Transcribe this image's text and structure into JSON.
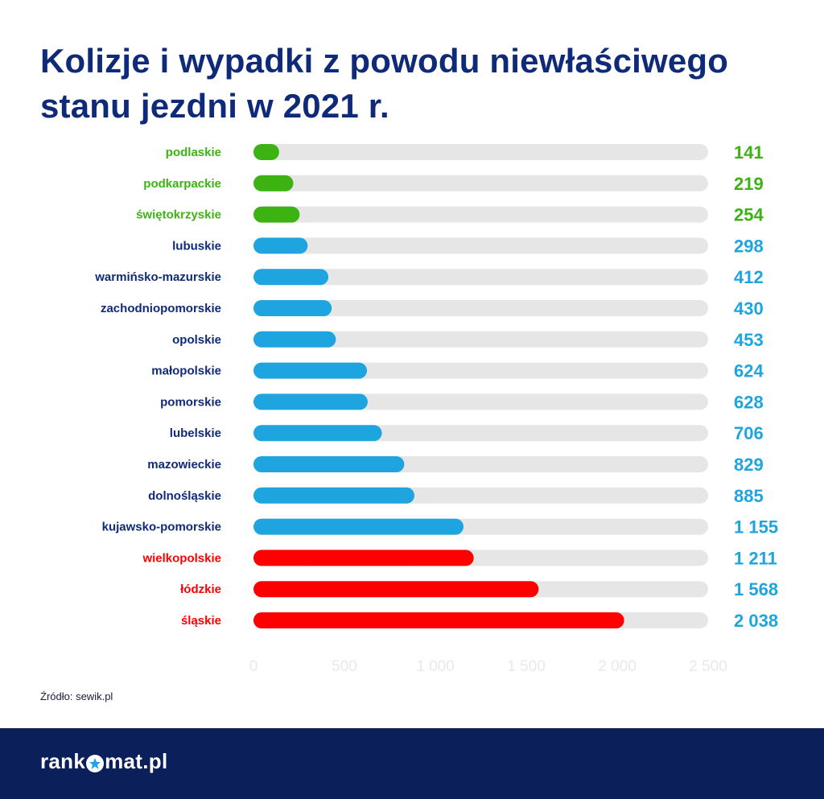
{
  "title": "Kolizje i wypadki z powodu niewłaściwego stanu jezdni w 2021 r.",
  "source": "Źródło: sewik.pl",
  "logo": {
    "part1": "rank",
    "part2": "mat.pl"
  },
  "colors": {
    "title": "#0f2a78",
    "green": "#3cb312",
    "blue": "#1ea4de",
    "red": "#ff0000",
    "navy_label": "#0f2a78",
    "track": "#e6e6e6",
    "footer": "#0b1f5b"
  },
  "chart_data": {
    "type": "bar",
    "orientation": "horizontal",
    "categories": [
      "podlaskie",
      "podkarpackie",
      "świętokrzyskie",
      "lubuskie",
      "warmińsko-mazurskie",
      "zachodniopomorskie",
      "opolskie",
      "małopolskie",
      "pomorskie",
      "lubelskie",
      "mazowieckie",
      "dolnośląskie",
      "kujawsko-pomorskie",
      "wielkopolskie",
      "łódzkie",
      "śląskie"
    ],
    "values": [
      141,
      219,
      254,
      298,
      412,
      430,
      453,
      624,
      628,
      706,
      829,
      885,
      1155,
      1211,
      1568,
      2038
    ],
    "value_labels": [
      "141",
      "219",
      "254",
      "298",
      "412",
      "430",
      "453",
      "624",
      "628",
      "706",
      "829",
      "885",
      "1 155",
      "1 211",
      "1 568",
      "2 038"
    ],
    "groups": [
      "green",
      "green",
      "green",
      "blue",
      "blue",
      "blue",
      "blue",
      "blue",
      "blue",
      "blue",
      "blue",
      "blue",
      "blue",
      "red",
      "red",
      "red"
    ],
    "label_colors": [
      "green",
      "green",
      "green",
      "navy_label",
      "navy_label",
      "navy_label",
      "navy_label",
      "navy_label",
      "navy_label",
      "navy_label",
      "navy_label",
      "navy_label",
      "navy_label",
      "red",
      "red",
      "red"
    ],
    "value_colors": [
      "green",
      "green",
      "green",
      "blue",
      "blue",
      "blue",
      "blue",
      "blue",
      "blue",
      "blue",
      "blue",
      "blue",
      "blue",
      "blue",
      "blue",
      "blue"
    ],
    "xlim": [
      0,
      2500
    ],
    "xticks": [
      0,
      500,
      1000,
      1500,
      2000,
      2500
    ],
    "xtick_labels": [
      "0",
      "500",
      "1 000",
      "1 500",
      "2 000",
      "2 500"
    ],
    "xlabel": "",
    "ylabel": "",
    "grid": false,
    "legend": "none"
  }
}
